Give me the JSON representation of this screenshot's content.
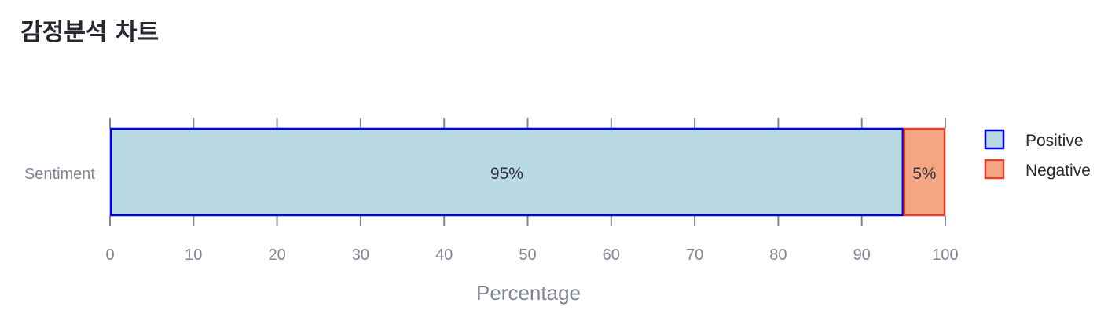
{
  "page": {
    "title": "감정분석 차트"
  },
  "chart_data": {
    "type": "bar",
    "orientation": "horizontal",
    "stacked": true,
    "categories": [
      "Sentiment"
    ],
    "series": [
      {
        "name": "Positive",
        "values": [
          95
        ],
        "label": "95%",
        "fill": "#b8d8e4",
        "stroke": "#0000e6"
      },
      {
        "name": "Negative",
        "values": [
          5
        ],
        "label": "5%",
        "fill": "#f4a581",
        "stroke": "#e8402a"
      }
    ],
    "xlabel": "Percentage",
    "ylabel": "",
    "xlim": [
      0,
      100
    ],
    "xticks": [
      "0",
      "10",
      "20",
      "30",
      "40",
      "50",
      "60",
      "70",
      "80",
      "90",
      "100"
    ],
    "grid": false,
    "legend": {
      "position": "right",
      "entries": [
        "Positive",
        "Negative"
      ]
    }
  }
}
